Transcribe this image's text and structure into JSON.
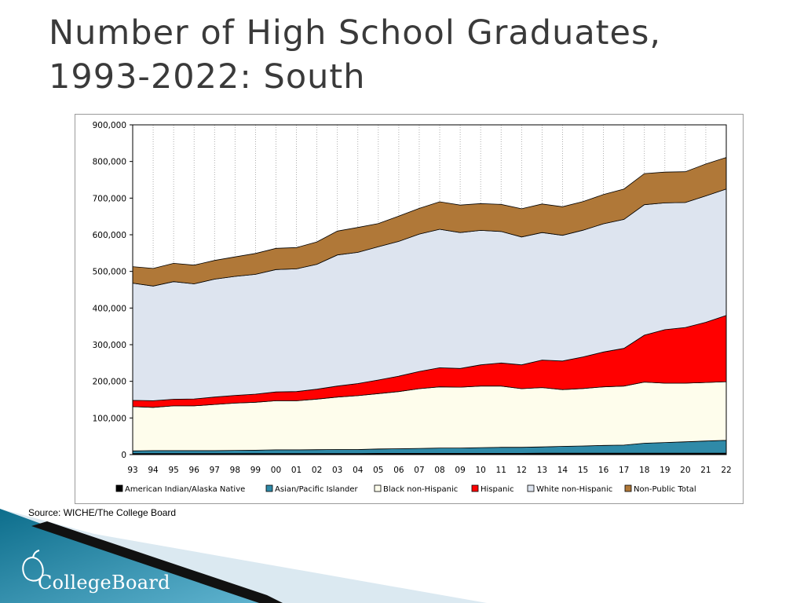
{
  "slide": {
    "title_line1": "Number of High School Graduates,",
    "title_line2": "1993-2022:  South",
    "source": "Source: WICHE/The College Board",
    "brand": "CollegeBoard"
  },
  "chart_data": {
    "type": "area",
    "stacked": true,
    "title": "",
    "xlabel": "",
    "ylabel": "",
    "ylim": [
      0,
      900000
    ],
    "yticks": [
      0,
      100000,
      200000,
      300000,
      400000,
      500000,
      600000,
      700000,
      800000,
      900000
    ],
    "ytick_labels": [
      "0",
      "100,000",
      "200,000",
      "300,000",
      "400,000",
      "500,000",
      "600,000",
      "700,000",
      "800,000",
      "900,000"
    ],
    "grid": "vertical",
    "legend": "bottom",
    "categories": [
      "93",
      "94",
      "95",
      "96",
      "97",
      "98",
      "99",
      "00",
      "01",
      "02",
      "03",
      "04",
      "05",
      "06",
      "07",
      "08",
      "09",
      "10",
      "11",
      "12",
      "13",
      "14",
      "15",
      "16",
      "17",
      "18",
      "19",
      "20",
      "21",
      "22"
    ],
    "series": [
      {
        "name": "American Indian/Alaska  Native",
        "color": "#000000",
        "values": [
          3000,
          3000,
          3000,
          3000,
          3000,
          3000,
          3000,
          3000,
          3000,
          3000,
          3000,
          3000,
          3500,
          3500,
          3500,
          3500,
          3500,
          3500,
          3500,
          3500,
          4000,
          4000,
          4000,
          4000,
          4000,
          4000,
          4000,
          4000,
          4000,
          4000
        ]
      },
      {
        "name": "Asian/Pacific Islander",
        "color": "#2f8aa8",
        "values": [
          7000,
          8000,
          8000,
          8000,
          8000,
          8500,
          9000,
          10000,
          10000,
          10500,
          11000,
          11000,
          12000,
          12500,
          13500,
          14500,
          14500,
          15500,
          16500,
          16500,
          17000,
          18500,
          19500,
          21000,
          22000,
          27000,
          29000,
          31000,
          33000,
          35000
        ]
      },
      {
        "name": "Black non-Hispanic",
        "color": "#fefdec",
        "values": [
          121000,
          118000,
          122000,
          122000,
          126000,
          129000,
          131000,
          134000,
          134000,
          138000,
          143000,
          147000,
          151000,
          156000,
          163000,
          167000,
          166000,
          168000,
          167000,
          160000,
          162000,
          155000,
          157000,
          160000,
          161000,
          167000,
          162000,
          160000,
          160000,
          160000
        ]
      },
      {
        "name": "Hispanic",
        "color": "#ff0000",
        "values": [
          17000,
          18000,
          18000,
          19000,
          20000,
          21000,
          22000,
          24000,
          25000,
          27000,
          30000,
          33000,
          37000,
          42000,
          47000,
          52000,
          51000,
          58000,
          63000,
          65000,
          75000,
          78000,
          86000,
          95000,
          103000,
          128000,
          146000,
          152000,
          164000,
          181000
        ]
      },
      {
        "name": "White non-Hispanic",
        "color": "#dde4ef",
        "values": [
          320000,
          313000,
          321000,
          314000,
          322000,
          325000,
          327000,
          334000,
          335000,
          341000,
          358000,
          358000,
          364000,
          368000,
          375000,
          378000,
          371000,
          367000,
          359000,
          349000,
          348000,
          343000,
          346000,
          350000,
          352000,
          356000,
          346000,
          341000,
          345000,
          345000
        ]
      },
      {
        "name": "Non-Public Total",
        "color": "#b07838",
        "values": [
          45000,
          48000,
          50000,
          51000,
          51000,
          53000,
          57000,
          58000,
          58000,
          61000,
          65000,
          68000,
          63000,
          69000,
          70000,
          75000,
          75000,
          73000,
          74000,
          77000,
          78000,
          78000,
          78000,
          80000,
          83000,
          85000,
          84000,
          84000,
          87000,
          86000
        ]
      }
    ]
  }
}
